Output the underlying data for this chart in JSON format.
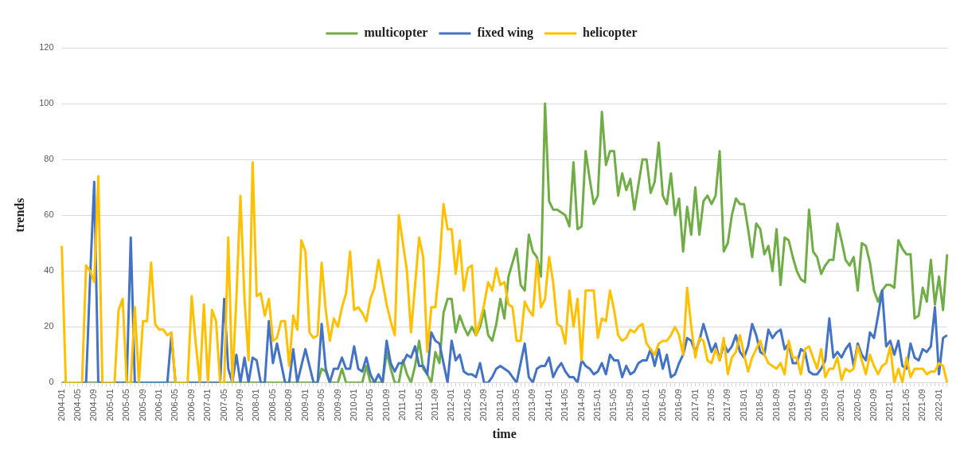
{
  "chart_data": {
    "type": "line",
    "xlabel": "time",
    "ylabel": "trends",
    "legend": "top",
    "grid": "y",
    "marker": "none",
    "line_style": "solid",
    "ylim": [
      0,
      120
    ],
    "yticks": [
      0,
      20,
      40,
      60,
      80,
      100,
      120
    ],
    "categories": [
      "2004-01",
      null,
      null,
      null,
      "2004-05",
      null,
      null,
      null,
      "2004-09",
      null,
      null,
      null,
      "2005-01",
      null,
      null,
      null,
      "2005-05",
      null,
      null,
      null,
      "2005-09",
      null,
      null,
      null,
      "2006-01",
      null,
      null,
      null,
      "2006-05",
      null,
      null,
      null,
      "2006-09",
      null,
      null,
      null,
      "2007-01",
      null,
      null,
      null,
      "2007-05",
      null,
      null,
      null,
      "2007-09",
      null,
      null,
      null,
      "2008-01",
      null,
      null,
      null,
      "2008-05",
      null,
      null,
      null,
      "2008-09",
      null,
      null,
      null,
      "2009-01",
      null,
      null,
      null,
      "2009-05",
      null,
      null,
      null,
      "2009-09",
      null,
      null,
      null,
      "2010-01",
      null,
      null,
      null,
      "2010-05",
      null,
      null,
      null,
      "2010-09",
      null,
      null,
      null,
      "2011-01",
      null,
      null,
      null,
      "2011-05",
      null,
      null,
      null,
      "2011-09",
      null,
      null,
      null,
      "2012-01",
      null,
      null,
      null,
      "2012-05",
      null,
      null,
      null,
      "2012-09",
      null,
      null,
      null,
      "2013-01",
      null,
      null,
      null,
      "2013-05",
      null,
      null,
      null,
      "2013-09",
      null,
      null,
      null,
      "2014-01",
      null,
      null,
      null,
      "2014-05",
      null,
      null,
      null,
      "2014-09",
      null,
      null,
      null,
      "2015-01",
      null,
      null,
      null,
      "2015-05",
      null,
      null,
      null,
      "2015-09",
      null,
      null,
      null,
      "2016-01",
      null,
      null,
      null,
      "2016-05",
      null,
      null,
      null,
      "2016-09",
      null,
      null,
      null,
      "2017-01",
      null,
      null,
      null,
      "2017-05",
      null,
      null,
      null,
      "2017-09",
      null,
      null,
      null,
      "2018-01",
      null,
      null,
      null,
      "2018-05",
      null,
      null,
      null,
      "2018-09",
      null,
      null,
      null,
      "2019-01",
      null,
      null,
      null,
      "2019-05",
      null,
      null,
      null,
      "2019-09",
      null,
      null,
      null,
      "2020-01",
      null,
      null,
      null,
      "2020-05",
      null,
      null,
      null,
      "2020-09",
      null,
      null,
      null,
      "2021-01",
      null,
      null,
      null,
      "2021-05",
      null,
      null,
      null,
      "2021-09",
      null,
      null,
      null,
      "2022-01",
      null,
      null
    ],
    "series": [
      {
        "name": "multicopter",
        "color": "#70ad47",
        "values": [
          0,
          0,
          0,
          0,
          0,
          0,
          0,
          0,
          0,
          0,
          0,
          0,
          0,
          0,
          0,
          0,
          0,
          0,
          0,
          0,
          0,
          0,
          0,
          0,
          0,
          0,
          0,
          0,
          0,
          0,
          0,
          0,
          0,
          0,
          0,
          0,
          0,
          0,
          0,
          0,
          0,
          0,
          0,
          0,
          0,
          0,
          0,
          0,
          0,
          0,
          0,
          0,
          0,
          0,
          0,
          0,
          0,
          0,
          0,
          0,
          0,
          0,
          0,
          0,
          5,
          4,
          0,
          0,
          0,
          5,
          0,
          0,
          0,
          0,
          0,
          6,
          0,
          0,
          0,
          0,
          11,
          5,
          0,
          0,
          8,
          3,
          0,
          6,
          15,
          5,
          3,
          0,
          11,
          7,
          25,
          30,
          30,
          18,
          24,
          20,
          17,
          20,
          17,
          20,
          26,
          17,
          15,
          21,
          30,
          23,
          38,
          43,
          48,
          35,
          33,
          53,
          47,
          45,
          38,
          100,
          65,
          62,
          62,
          61,
          60,
          56,
          79,
          55,
          56,
          83,
          73,
          64,
          67,
          97,
          78,
          83,
          83,
          67,
          75,
          69,
          73,
          62,
          71,
          80,
          80,
          68,
          72,
          86,
          67,
          64,
          75,
          60,
          66,
          47,
          63,
          53,
          70,
          53,
          65,
          67,
          64,
          67,
          83,
          47,
          50,
          60,
          66,
          64,
          64,
          55,
          45,
          57,
          55,
          46,
          49,
          40,
          55,
          35,
          52,
          51,
          45,
          40,
          37,
          36,
          62,
          47,
          45,
          39,
          42,
          44,
          44,
          57,
          51,
          44,
          42,
          45,
          33,
          50,
          49,
          43,
          33,
          29,
          33,
          35,
          35,
          34,
          51,
          48,
          46,
          46,
          23,
          24,
          34,
          29,
          44,
          28,
          38,
          26,
          46
        ]
      },
      {
        "name": "fixed wing",
        "color": "#4472c4",
        "values": [
          null,
          null,
          null,
          null,
          0,
          0,
          0,
          38,
          72,
          0,
          0,
          0,
          0,
          0,
          0,
          0,
          0,
          52,
          0,
          0,
          0,
          0,
          0,
          0,
          0,
          0,
          0,
          17,
          0,
          0,
          0,
          0,
          0,
          0,
          0,
          0,
          0,
          0,
          0,
          0,
          30,
          5,
          0,
          10,
          0,
          9,
          0,
          9,
          8,
          0,
          0,
          22,
          7,
          14,
          7,
          0,
          0,
          12,
          0,
          6,
          12,
          6,
          0,
          0,
          21,
          5,
          0,
          5,
          5,
          9,
          5,
          5,
          13,
          5,
          4,
          9,
          3,
          0,
          3,
          0,
          15,
          7,
          4,
          7,
          7,
          10,
          9,
          13,
          6,
          6,
          3,
          18,
          15,
          14,
          7,
          0,
          15,
          8,
          10,
          4,
          3,
          3,
          2,
          7,
          0,
          0,
          2,
          5,
          6,
          5,
          4,
          2,
          0,
          7,
          14,
          2,
          0,
          5,
          6,
          6,
          9,
          2,
          5,
          7,
          4,
          2,
          2,
          0,
          8,
          6,
          5,
          3,
          4,
          7,
          3,
          10,
          8,
          8,
          2,
          6,
          3,
          4,
          7,
          8,
          8,
          12,
          6,
          12,
          5,
          10,
          2,
          3,
          7,
          10,
          16,
          15,
          11,
          15,
          21,
          16,
          11,
          14,
          8,
          14,
          11,
          13,
          17,
          11,
          9,
          13,
          21,
          17,
          11,
          10,
          19,
          16,
          18,
          19,
          12,
          14,
          7,
          7,
          12,
          11,
          4,
          3,
          3,
          5,
          8,
          23,
          9,
          11,
          9,
          12,
          14,
          6,
          14,
          10,
          8,
          18,
          16,
          24,
          33,
          13,
          15,
          10,
          15,
          6,
          5,
          14,
          9,
          8,
          12,
          11,
          13,
          27,
          3,
          16,
          17
        ]
      },
      {
        "name": "helicopter",
        "color": "#ffc000",
        "values": [
          49,
          0,
          0,
          0,
          0,
          0,
          42,
          40,
          36,
          74,
          0,
          0,
          0,
          0,
          26,
          30,
          0,
          0,
          27,
          0,
          22,
          22,
          43,
          21,
          19,
          19,
          17,
          18,
          0,
          0,
          0,
          0,
          31,
          14,
          0,
          28,
          0,
          26,
          22,
          0,
          0,
          52,
          0,
          30,
          67,
          30,
          8,
          79,
          31,
          32,
          24,
          30,
          15,
          16,
          22,
          22,
          6,
          24,
          19,
          51,
          47,
          18,
          16,
          17,
          43,
          26,
          15,
          23,
          20,
          27,
          32,
          47,
          26,
          27,
          25,
          22,
          30,
          34,
          44,
          36,
          28,
          22,
          17,
          60,
          50,
          40,
          18,
          35,
          52,
          45,
          11,
          27,
          27,
          42,
          64,
          55,
          55,
          39,
          51,
          33,
          41,
          42,
          17,
          22,
          28,
          36,
          33,
          41,
          35,
          36,
          28,
          27,
          15,
          15,
          29,
          26,
          24,
          44,
          27,
          30,
          45,
          36,
          21,
          20,
          14,
          33,
          20,
          30,
          8,
          33,
          33,
          33,
          16,
          23,
          22,
          33,
          26,
          17,
          15,
          16,
          19,
          18,
          20,
          21,
          14,
          12,
          10,
          14,
          15,
          15,
          17,
          20,
          17,
          10,
          34,
          20,
          9,
          16,
          15,
          8,
          7,
          12,
          8,
          16,
          3,
          9,
          11,
          17,
          10,
          4,
          9,
          12,
          15,
          10,
          7,
          6,
          5,
          7,
          3,
          15,
          9,
          9,
          3,
          12,
          13,
          9,
          5,
          12,
          2,
          5,
          5,
          9,
          1,
          5,
          4,
          5,
          13,
          8,
          3,
          10,
          6,
          3,
          6,
          7,
          13,
          0,
          5,
          0,
          9,
          2,
          5,
          5,
          5,
          3,
          4,
          4,
          7,
          6,
          0
        ]
      }
    ]
  }
}
